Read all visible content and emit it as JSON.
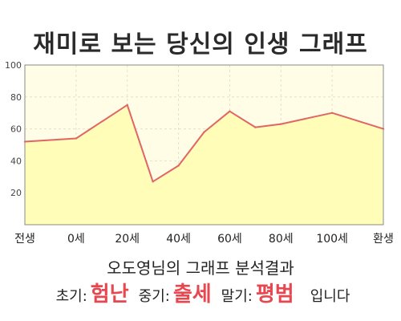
{
  "title": "재미로 보는 당신의 인생 그래프",
  "summary": "오도영님의 그래프 분석결과",
  "results": {
    "early_label": "초기:",
    "early_value": "험난",
    "mid_label": "중기:",
    "mid_value": "출세",
    "late_label": "말기:",
    "late_value": "평범",
    "tail": "입니다"
  },
  "colors": {
    "line": "#e06666",
    "fill": "#fffdb8",
    "plot_bg": "#fffde6",
    "highlight": "#e8474f"
  },
  "chart_data": {
    "type": "area",
    "x": [
      -20,
      0,
      20,
      30,
      40,
      50,
      60,
      70,
      80,
      100,
      120
    ],
    "y": [
      52,
      54,
      75,
      27,
      37,
      58,
      71,
      61,
      63,
      70,
      60
    ],
    "x_ticks": [
      -20,
      0,
      20,
      40,
      60,
      80,
      100,
      120
    ],
    "x_tick_labels": [
      "전생",
      "0세",
      "20세",
      "40세",
      "60세",
      "80세",
      "100세",
      "환생"
    ],
    "y_ticks": [
      20,
      40,
      60,
      80,
      100
    ],
    "xlim": [
      -20,
      120
    ],
    "ylim": [
      0,
      100
    ],
    "grid": true
  }
}
